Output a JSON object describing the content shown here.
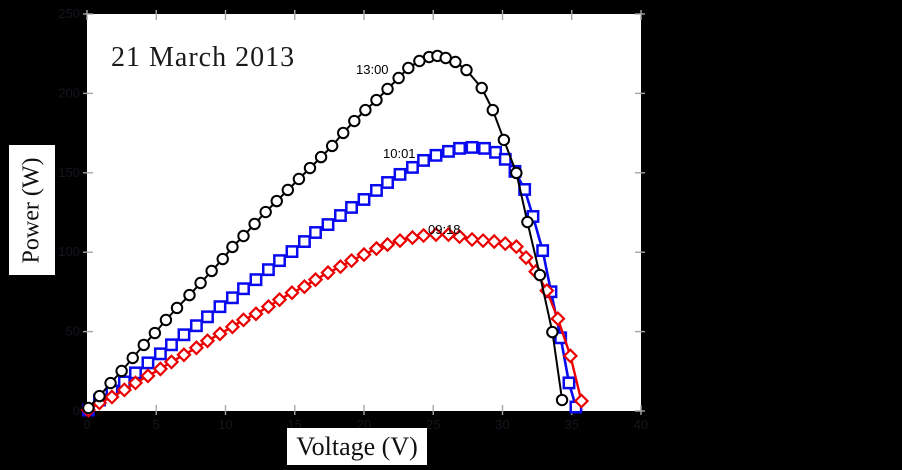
{
  "styles": {
    "page_bg": "#000000",
    "plot_bg": "#ffffff",
    "tick_color": "#a6a6a6",
    "tick_label_color": "#15151d",
    "annotation_color": "#1a1a1a",
    "series_black": "#000000",
    "series_blue": "#0a0af0",
    "series_red": "#ea0000"
  },
  "chart_data": {
    "type": "scatter",
    "subtype": "line+markers (P-V curves of a photovoltaic module at three times of day)",
    "annotation": "21 March 2013",
    "xlabel": "Voltage (V)",
    "ylabel": "Power (W)",
    "xlim": [
      0,
      40
    ],
    "ylim": [
      0,
      250
    ],
    "x_ticks": [
      0,
      5,
      10,
      15,
      20,
      25,
      30,
      35,
      40
    ],
    "y_ticks": [
      0,
      50,
      100,
      150,
      200,
      250
    ],
    "grid": false,
    "legend_position": "inline curve labels",
    "series": [
      {
        "name": "13:00",
        "marker": "circle",
        "color": "#000000",
        "peak": {
          "v": 25.3,
          "p": 224
        },
        "points": [
          [
            0.1,
            1.9
          ],
          [
            0.9,
            9.4
          ],
          [
            1.7,
            17.6
          ],
          [
            2.5,
            25.2
          ],
          [
            3.3,
            33.4
          ],
          [
            4.1,
            41.6
          ],
          [
            4.9,
            49.1
          ],
          [
            5.7,
            57.3
          ],
          [
            6.5,
            64.9
          ],
          [
            7.4,
            73.0
          ],
          [
            8.2,
            80.6
          ],
          [
            9.0,
            88.2
          ],
          [
            9.8,
            95.7
          ],
          [
            10.5,
            103.3
          ],
          [
            11.3,
            110.2
          ],
          [
            12.1,
            117.8
          ],
          [
            12.9,
            125.3
          ],
          [
            13.7,
            132.2
          ],
          [
            14.5,
            139.2
          ],
          [
            15.3,
            146.1
          ],
          [
            16.1,
            153.0
          ],
          [
            16.9,
            159.9
          ],
          [
            17.7,
            166.9
          ],
          [
            18.5,
            175.1
          ],
          [
            19.3,
            182.6
          ],
          [
            20.1,
            189.5
          ],
          [
            20.9,
            195.8
          ],
          [
            21.7,
            202.8
          ],
          [
            22.5,
            209.7
          ],
          [
            23.2,
            216.0
          ],
          [
            24.0,
            220.4
          ],
          [
            24.7,
            222.9
          ],
          [
            25.3,
            223.6
          ],
          [
            25.9,
            222.3
          ],
          [
            26.6,
            219.8
          ],
          [
            27.4,
            214.7
          ],
          [
            28.5,
            203.4
          ],
          [
            29.3,
            189.5
          ],
          [
            30.1,
            170.7
          ],
          [
            31.0,
            149.9
          ],
          [
            31.8,
            119.0
          ],
          [
            32.7,
            85.6
          ],
          [
            33.6,
            49.7
          ],
          [
            34.3,
            6.9
          ]
        ]
      },
      {
        "name": "10:01",
        "marker": "square",
        "color": "#0a0af0",
        "peak": {
          "v": 27.8,
          "p": 166
        },
        "points": [
          [
            0.1,
            0.6
          ],
          [
            0.9,
            6.9
          ],
          [
            1.8,
            12.6
          ],
          [
            2.7,
            18.3
          ],
          [
            3.5,
            24.0
          ],
          [
            4.4,
            30.3
          ],
          [
            5.3,
            36.0
          ],
          [
            6.1,
            41.7
          ],
          [
            7.0,
            48.0
          ],
          [
            7.9,
            53.7
          ],
          [
            8.7,
            59.3
          ],
          [
            9.6,
            65.7
          ],
          [
            10.5,
            71.3
          ],
          [
            11.3,
            77.0
          ],
          [
            12.2,
            82.7
          ],
          [
            13.1,
            89.0
          ],
          [
            13.9,
            94.7
          ],
          [
            14.8,
            100.4
          ],
          [
            15.7,
            106.7
          ],
          [
            16.5,
            112.4
          ],
          [
            17.4,
            117.4
          ],
          [
            18.3,
            123.1
          ],
          [
            19.1,
            128.2
          ],
          [
            20.0,
            133.2
          ],
          [
            20.9,
            138.9
          ],
          [
            21.7,
            143.9
          ],
          [
            22.6,
            149.0
          ],
          [
            23.5,
            153.4
          ],
          [
            24.3,
            157.8
          ],
          [
            25.2,
            161.0
          ],
          [
            26.1,
            163.5
          ],
          [
            26.9,
            165.4
          ],
          [
            27.8,
            166.0
          ],
          [
            28.7,
            165.4
          ],
          [
            29.5,
            162.9
          ],
          [
            30.2,
            158.5
          ],
          [
            30.9,
            150.9
          ],
          [
            31.6,
            139.5
          ],
          [
            32.2,
            122.5
          ],
          [
            32.9,
            101.0
          ],
          [
            33.5,
            75.1
          ],
          [
            34.2,
            46.1
          ],
          [
            34.8,
            17.7
          ],
          [
            35.3,
            2.5
          ]
        ]
      },
      {
        "name": "09:18",
        "marker": "diamond",
        "color": "#ea0000",
        "peak": {
          "v": 25.6,
          "p": 111
        },
        "points": [
          [
            0.1,
            0.6
          ],
          [
            0.9,
            5.1
          ],
          [
            1.8,
            8.8
          ],
          [
            2.7,
            13.3
          ],
          [
            3.5,
            17.7
          ],
          [
            4.4,
            22.1
          ],
          [
            5.3,
            26.5
          ],
          [
            6.1,
            30.9
          ],
          [
            7.0,
            35.4
          ],
          [
            7.9,
            39.8
          ],
          [
            8.7,
            44.2
          ],
          [
            9.6,
            48.6
          ],
          [
            10.5,
            53.0
          ],
          [
            11.3,
            57.4
          ],
          [
            12.2,
            61.2
          ],
          [
            13.1,
            65.7
          ],
          [
            13.9,
            70.1
          ],
          [
            14.8,
            74.5
          ],
          [
            15.7,
            78.3
          ],
          [
            16.5,
            82.7
          ],
          [
            17.4,
            87.1
          ],
          [
            18.3,
            90.9
          ],
          [
            19.1,
            94.7
          ],
          [
            20.0,
            98.5
          ],
          [
            20.9,
            102.3
          ],
          [
            21.7,
            104.8
          ],
          [
            22.6,
            107.3
          ],
          [
            23.5,
            109.2
          ],
          [
            24.3,
            110.5
          ],
          [
            25.2,
            111.1
          ],
          [
            26.1,
            111.1
          ],
          [
            26.9,
            109.8
          ],
          [
            27.8,
            108.0
          ],
          [
            28.6,
            107.3
          ],
          [
            29.4,
            106.7
          ],
          [
            30.2,
            105.4
          ],
          [
            31.0,
            103.5
          ],
          [
            31.7,
            96.6
          ],
          [
            32.4,
            87.8
          ],
          [
            33.2,
            75.8
          ],
          [
            34.0,
            58.1
          ],
          [
            34.9,
            34.7
          ],
          [
            35.7,
            6.3
          ]
        ]
      }
    ]
  }
}
